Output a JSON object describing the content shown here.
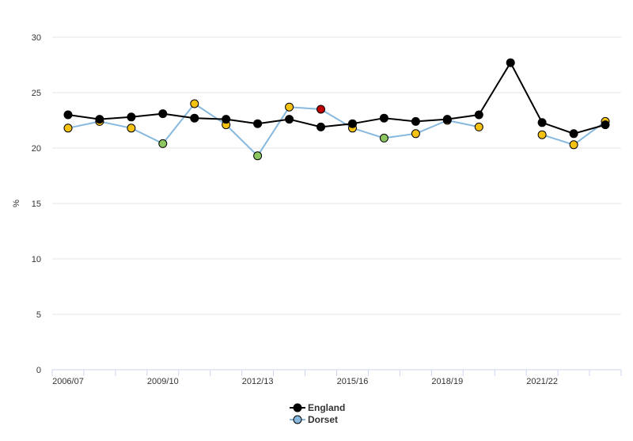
{
  "chart_data": {
    "type": "line",
    "ylabel": "%",
    "ylim": [
      0,
      30
    ],
    "y_ticks": [
      0,
      5,
      10,
      15,
      20,
      25,
      30
    ],
    "x": [
      "2006/07",
      "2007/08",
      "2008/09",
      "2009/10",
      "2010/11",
      "2011/12",
      "2012/13",
      "2013/14",
      "2014/15",
      "2015/16",
      "2016/17",
      "2017/18",
      "2018/19",
      "2019/20",
      "2020/21",
      "2021/22",
      "2022/23",
      "2023/24"
    ],
    "x_tick_labels": [
      "2006/07",
      "",
      "",
      "2009/10",
      "",
      "",
      "2012/13",
      "",
      "",
      "2015/16",
      "",
      "",
      "2018/19",
      "",
      "",
      "2021/22",
      "",
      ""
    ],
    "grid": "horizontal",
    "legend_position": "bottom",
    "series": [
      {
        "name": "England",
        "line_color": "#000000",
        "values": [
          23.0,
          22.6,
          22.8,
          23.1,
          22.7,
          22.6,
          22.2,
          22.6,
          21.9,
          22.2,
          22.7,
          22.4,
          22.6,
          23.0,
          27.7,
          22.3,
          21.3,
          22.1
        ],
        "marker_colors": [
          "#000000",
          "#000000",
          "#000000",
          "#000000",
          "#000000",
          "#000000",
          "#000000",
          "#000000",
          "#000000",
          "#000000",
          "#000000",
          "#000000",
          "#000000",
          "#000000",
          "#000000",
          "#000000",
          "#000000",
          "#000000"
        ]
      },
      {
        "name": "Dorset",
        "line_color": "#87b8de",
        "values": [
          21.8,
          22.4,
          21.8,
          20.4,
          24.0,
          22.1,
          19.3,
          23.7,
          23.5,
          21.8,
          20.9,
          21.3,
          22.5,
          21.9,
          null,
          21.2,
          20.3,
          22.4
        ],
        "marker_colors": [
          "#f6c212",
          "#f6c212",
          "#f6c212",
          "#8dc660",
          "#f6c212",
          "#f6c212",
          "#8dc660",
          "#f6c212",
          "#c00000",
          "#f6c212",
          "#8dc660",
          "#f6c212",
          "#f6c212",
          "#f6c212",
          null,
          "#f6c212",
          "#f6c212",
          "#f6c212"
        ]
      }
    ],
    "legend": [
      {
        "name": "England",
        "swatch_color": "#000000"
      },
      {
        "name": "Dorset",
        "swatch_color": "#87b8de"
      }
    ]
  }
}
